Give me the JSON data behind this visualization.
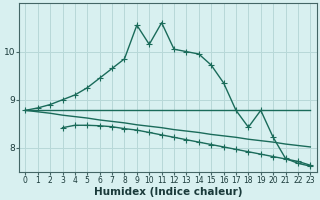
{
  "title": "",
  "xlabel": "Humidex (Indice chaleur)",
  "ylabel": "",
  "background_color": "#d8f0f0",
  "grid_color": "#b8d8d8",
  "line_color": "#1a6b5a",
  "line1_x": [
    0,
    1,
    2,
    3,
    4,
    5,
    6,
    7,
    8,
    9,
    10,
    11,
    12,
    13,
    14,
    15,
    16,
    17,
    18,
    19,
    20,
    21,
    22,
    23
  ],
  "line1_y": [
    8.78,
    8.83,
    8.9,
    9.0,
    9.1,
    9.25,
    9.45,
    9.65,
    9.85,
    10.55,
    10.15,
    10.6,
    10.05,
    10.0,
    9.95,
    9.72,
    9.35,
    8.78,
    8.43,
    8.78,
    8.22,
    7.78,
    7.68,
    7.62
  ],
  "line2_x": [
    0,
    1,
    2,
    3,
    4,
    5,
    6,
    7,
    8,
    9,
    10,
    11,
    12,
    13,
    14,
    15,
    16,
    17,
    18,
    19,
    20,
    21,
    22,
    23
  ],
  "line2_y": [
    8.78,
    8.78,
    8.78,
    8.78,
    8.78,
    8.78,
    8.78,
    8.78,
    8.78,
    8.78,
    8.78,
    8.78,
    8.78,
    8.78,
    8.78,
    8.78,
    8.78,
    8.78,
    8.78,
    8.78,
    8.78,
    8.78,
    8.78,
    8.78
  ],
  "line3_x": [
    0,
    1,
    2,
    3,
    4,
    5,
    6,
    7,
    8,
    9,
    10,
    11,
    12,
    13,
    14,
    15,
    16,
    17,
    18,
    19,
    20,
    21,
    22,
    23
  ],
  "line3_y": [
    8.78,
    8.75,
    8.72,
    8.68,
    8.65,
    8.62,
    8.58,
    8.55,
    8.52,
    8.48,
    8.45,
    8.42,
    8.38,
    8.35,
    8.32,
    8.28,
    8.25,
    8.22,
    8.18,
    8.15,
    8.12,
    8.08,
    8.05,
    8.02
  ],
  "line4_x": [
    3,
    4,
    5,
    6,
    7,
    8,
    9,
    10,
    11,
    12,
    13,
    14,
    15,
    16,
    17,
    18,
    19,
    20,
    21,
    22,
    23
  ],
  "line4_y": [
    8.42,
    8.47,
    8.47,
    8.46,
    8.44,
    8.4,
    8.37,
    8.32,
    8.27,
    8.22,
    8.17,
    8.12,
    8.07,
    8.02,
    7.97,
    7.92,
    7.87,
    7.82,
    7.77,
    7.72,
    7.64
  ],
  "xlim": [
    -0.5,
    23.5
  ],
  "ylim": [
    7.5,
    11.0
  ],
  "yticks": [
    8,
    9,
    10
  ],
  "xticks": [
    0,
    1,
    2,
    3,
    4,
    5,
    6,
    7,
    8,
    9,
    10,
    11,
    12,
    13,
    14,
    15,
    16,
    17,
    18,
    19,
    20,
    21,
    22,
    23
  ],
  "marker": "+",
  "markersize": 4,
  "linewidth": 1.0,
  "xlabel_fontsize": 7.5,
  "tick_fontsize": 6.5
}
